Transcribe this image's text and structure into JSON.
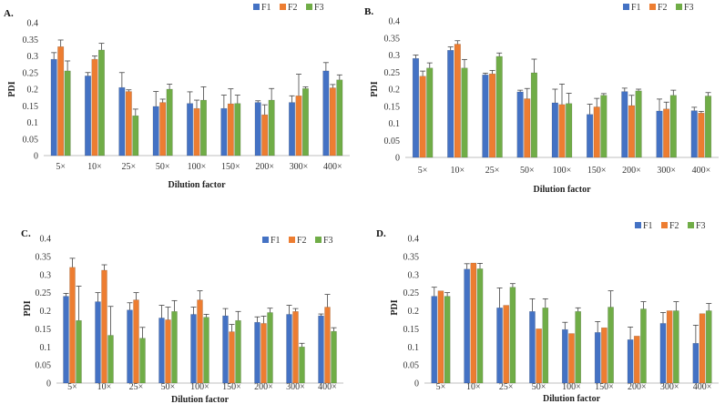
{
  "colors": {
    "F1": "#4472C4",
    "F2": "#ED7D31",
    "F3": "#70AD47"
  },
  "chart_data": [
    {
      "type": "bar",
      "panel": "A.",
      "categories": [
        "5×",
        "10×",
        "25×",
        "50×",
        "100×",
        "150×",
        "200×",
        "300×",
        "400×"
      ],
      "xlabel": "Dilution factor",
      "ylabel": "PDI",
      "ylim": [
        0,
        0.4
      ],
      "yticks": [
        "0",
        "0.05",
        "0.1",
        "0.15",
        "0.2",
        "0.25",
        "0.3",
        "0.35",
        "0.4"
      ],
      "legend_position": "top-right",
      "series": [
        {
          "name": "F1",
          "values": [
            0.29,
            0.24,
            0.205,
            0.148,
            0.157,
            0.142,
            0.16,
            0.16,
            0.255
          ],
          "errors": [
            0.02,
            0.01,
            0.045,
            0.045,
            0.035,
            0.04,
            0.005,
            0.02,
            0.025
          ]
        },
        {
          "name": "F2",
          "values": [
            0.328,
            0.29,
            0.193,
            0.16,
            0.142,
            0.156,
            0.123,
            0.18,
            0.204
          ],
          "errors": [
            0.02,
            0.01,
            0.005,
            0.01,
            0.025,
            0.045,
            0.03,
            0.065,
            0.01
          ]
        },
        {
          "name": "F3",
          "values": [
            0.255,
            0.318,
            0.12,
            0.2,
            0.167,
            0.157,
            0.167,
            0.202,
            0.228
          ],
          "errors": [
            0.03,
            0.02,
            0.02,
            0.015,
            0.04,
            0.025,
            0.035,
            0.005,
            0.015
          ]
        }
      ]
    },
    {
      "type": "bar",
      "panel": "B.",
      "categories": [
        "5×",
        "10×",
        "25×",
        "50×",
        "100×",
        "150×",
        "200×",
        "300×",
        "400×"
      ],
      "xlabel": "Dilution factor",
      "ylabel": "PDI",
      "ylim": [
        0,
        0.4
      ],
      "yticks": [
        "0",
        "0.05",
        "0.1",
        "0.15",
        "0.2",
        "0.25",
        "0.3",
        "0.35",
        "0.4"
      ],
      "legend_position": "top-right",
      "series": [
        {
          "name": "F1",
          "values": [
            0.29,
            0.314,
            0.242,
            0.192,
            0.16,
            0.126,
            0.193,
            0.136,
            0.137
          ],
          "errors": [
            0.01,
            0.01,
            0.005,
            0.005,
            0.04,
            0.03,
            0.01,
            0.035,
            0.01
          ]
        },
        {
          "name": "F2",
          "values": [
            0.238,
            0.332,
            0.245,
            0.172,
            0.155,
            0.148,
            0.152,
            0.142,
            0.13
          ],
          "errors": [
            0.015,
            0.01,
            0.01,
            0.03,
            0.06,
            0.025,
            0.03,
            0.02,
            0.005
          ]
        },
        {
          "name": "F3",
          "values": [
            0.262,
            0.262,
            0.296,
            0.248,
            0.158,
            0.182,
            0.195,
            0.182,
            0.18
          ],
          "errors": [
            0.015,
            0.025,
            0.01,
            0.04,
            0.03,
            0.005,
            0.005,
            0.015,
            0.01
          ]
        }
      ]
    },
    {
      "type": "bar",
      "panel": "C.",
      "categories": [
        "5×",
        "10×",
        "25×",
        "50×",
        "100×",
        "150×",
        "200×",
        "300×",
        "400×"
      ],
      "xlabel": "Dilution factor",
      "ylabel": "PDI",
      "ylim": [
        0,
        0.4
      ],
      "yticks": [
        "0",
        "0.05",
        "0.1",
        "0.15",
        "0.2",
        "0.25",
        "0.3",
        "0.35",
        "0.4"
      ],
      "legend_position": "top-right",
      "series": [
        {
          "name": "F1",
          "values": [
            0.24,
            0.225,
            0.202,
            0.18,
            0.19,
            0.186,
            0.168,
            0.19,
            0.186
          ],
          "errors": [
            0.008,
            0.025,
            0.02,
            0.035,
            0.02,
            0.02,
            0.015,
            0.025,
            0.005
          ]
        },
        {
          "name": "F2",
          "values": [
            0.32,
            0.312,
            0.23,
            0.175,
            0.23,
            0.142,
            0.165,
            0.198,
            0.21
          ],
          "errors": [
            0.025,
            0.015,
            0.02,
            0.035,
            0.025,
            0.02,
            0.02,
            0.008,
            0.035
          ]
        },
        {
          "name": "F3",
          "values": [
            0.173,
            0.132,
            0.124,
            0.198,
            0.182,
            0.173,
            0.195,
            0.1,
            0.143
          ],
          "errors": [
            0.095,
            0.08,
            0.03,
            0.03,
            0.008,
            0.025,
            0.012,
            0.01,
            0.01
          ]
        }
      ]
    },
    {
      "type": "bar",
      "panel": "D.",
      "categories": [
        "5×",
        "10×",
        "25×",
        "50×",
        "100×",
        "150×",
        "200×",
        "300×",
        "400×"
      ],
      "xlabel": "Dilution factor",
      "ylabel": "PDI",
      "ylim": [
        0,
        0.4
      ],
      "yticks": [
        "0",
        "0.05",
        "0.1",
        "0.15",
        "0.2",
        "0.25",
        "0.3",
        "0.35",
        "0.4"
      ],
      "legend_position": "top-right",
      "series": [
        {
          "name": "F1",
          "values": [
            0.24,
            0.315,
            0.208,
            0.198,
            0.148,
            0.14,
            0.12,
            0.165,
            0.11
          ],
          "errors": [
            0.025,
            0.015,
            0.055,
            0.035,
            0.02,
            0.03,
            0.035,
            0.03,
            0.05
          ]
        },
        {
          "name": "F2",
          "values": [
            0.255,
            0.332,
            0.215,
            0.15,
            0.137,
            0.153,
            0.13,
            0.2,
            0.192
          ]
        },
        {
          "name": "F3",
          "values": [
            0.24,
            0.316,
            0.265,
            0.208,
            0.198,
            0.21,
            0.205,
            0.2,
            0.2
          ],
          "errors": [
            0.01,
            0.015,
            0.01,
            0.025,
            0.01,
            0.045,
            0.02,
            0.025,
            0.02
          ]
        }
      ]
    }
  ]
}
